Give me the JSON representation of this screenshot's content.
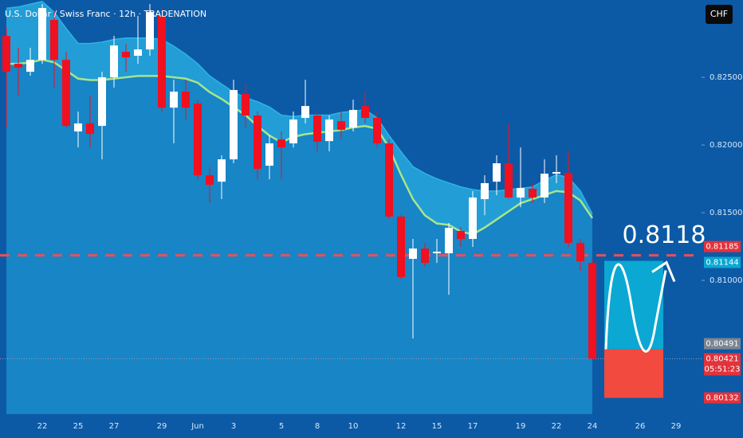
{
  "chart_data": {
    "type": "candlestick",
    "title": "U.S. Dollar / Swiss Franc · 12h · TRADENATION",
    "currency": "CHF",
    "up_color": "#ffffff",
    "down_color": "#f0101f",
    "categories": [
      null,
      null,
      null,
      "22",
      null,
      null,
      "25",
      null,
      null,
      "27",
      null,
      null,
      null,
      "29",
      null,
      null,
      "Jun",
      null,
      null,
      "3",
      null,
      null,
      null,
      "5",
      null,
      null,
      "8",
      null,
      null,
      "10",
      null,
      null,
      null,
      "12",
      null,
      null,
      "15",
      null,
      null,
      "17",
      null,
      null,
      null,
      "19",
      null,
      null,
      "22",
      null,
      null,
      "24",
      null,
      null,
      null,
      "26",
      null,
      null,
      "29"
    ],
    "open": [
      0.82806,
      0.826,
      0.82541,
      0.82629,
      0.82924,
      0.82629,
      0.821,
      0.82159,
      0.82141,
      0.825,
      0.82688,
      0.82659,
      0.82706,
      0.82953,
      0.82276,
      0.82394,
      0.82306,
      0.81776,
      0.81729,
      0.81894,
      0.82376,
      0.82218,
      0.81847,
      0.82041,
      0.82012,
      0.822,
      0.82218,
      0.82029,
      0.82176,
      0.82129,
      0.82288,
      0.822,
      0.82012,
      0.81471,
      0.81159,
      0.81235,
      0.812,
      0.812,
      0.81365,
      0.81306,
      0.816,
      0.81729,
      0.81865,
      0.81612,
      0.81676,
      0.81612,
      0.81788,
      0.81794,
      0.81276,
      0.81129,
      null,
      null,
      null,
      null,
      null,
      null,
      null
    ],
    "high": [
      0.82865,
      0.82718,
      0.82718,
      0.83041,
      0.82982,
      0.82688,
      0.82247,
      0.82365,
      0.82541,
      0.82806,
      0.82747,
      0.82953,
      0.83041,
      0.83012,
      0.82482,
      0.82482,
      0.82335,
      0.81835,
      0.81924,
      0.82482,
      0.82453,
      0.82247,
      0.82071,
      0.821,
      0.82247,
      0.82482,
      0.82247,
      0.82218,
      0.82247,
      0.82335,
      0.82394,
      0.82247,
      0.82041,
      0.81482,
      0.81306,
      0.81276,
      0.81306,
      0.81424,
      0.81394,
      0.81659,
      0.81776,
      0.81924,
      0.82159,
      0.81982,
      0.81718,
      0.81894,
      0.81924,
      0.81953,
      0.81306,
      0.81159,
      null,
      null,
      null,
      null,
      null,
      null,
      null
    ],
    "low": [
      0.82129,
      0.82365,
      0.82512,
      0.826,
      0.82424,
      0.82129,
      0.81982,
      0.81982,
      0.81894,
      0.82424,
      0.82541,
      0.826,
      0.82659,
      0.82247,
      0.82012,
      0.82188,
      0.81747,
      0.81571,
      0.816,
      0.81865,
      0.82129,
      0.81747,
      0.81747,
      0.81747,
      0.81982,
      0.82159,
      0.81953,
      0.81953,
      0.82041,
      0.821,
      0.82159,
      0.81982,
      0.81453,
      0.81012,
      0.80571,
      0.811,
      0.81129,
      0.80894,
      0.81247,
      0.81247,
      0.81482,
      0.81629,
      0.816,
      0.81541,
      0.81571,
      0.81571,
      0.81718,
      0.81247,
      0.81071,
      0.80412,
      null,
      null,
      null,
      null,
      null,
      null,
      null
    ],
    "close": [
      0.82541,
      0.82571,
      0.82629,
      0.83012,
      0.82629,
      0.82141,
      0.82159,
      0.82082,
      0.825,
      0.82735,
      0.82647,
      0.82706,
      0.82982,
      0.82276,
      0.82394,
      0.82276,
      0.81776,
      0.81706,
      0.81894,
      0.82406,
      0.82218,
      0.81824,
      0.82012,
      0.81982,
      0.82188,
      0.82288,
      0.82024,
      0.82188,
      0.82112,
      0.82259,
      0.822,
      0.82012,
      0.81471,
      0.81024,
      0.81235,
      0.81129,
      0.81212,
      0.81388,
      0.81306,
      0.81612,
      0.81718,
      0.81865,
      0.81612,
      0.81682,
      0.81612,
      0.81788,
      0.818,
      0.81276,
      0.81141,
      0.80421,
      null,
      null,
      null,
      null,
      null,
      null,
      null
    ],
    "ema": {
      "color": "#a8e58a",
      "values": [
        0.826,
        0.826,
        0.8261,
        0.8263,
        0.8261,
        0.8255,
        0.8249,
        0.8248,
        0.8248,
        0.8249,
        0.825,
        0.8251,
        0.8251,
        0.8251,
        0.825,
        0.8249,
        0.8246,
        0.8239,
        0.8234,
        0.8228,
        0.8222,
        0.8214,
        0.8207,
        0.8202,
        0.8206,
        0.8208,
        0.8209,
        0.821,
        0.8211,
        0.8213,
        0.8214,
        0.8212,
        0.8198,
        0.8178,
        0.816,
        0.8148,
        0.8142,
        0.8141,
        0.8136,
        0.8134,
        0.8139,
        0.8145,
        0.8151,
        0.8157,
        0.816,
        0.8163,
        0.8166,
        0.8165,
        0.8159,
        0.8146,
        null,
        null,
        null,
        null,
        null,
        null,
        null
      ]
    },
    "band": {
      "color": "#2fb4e3",
      "values": [
        0.8301,
        0.8302,
        0.8304,
        0.8306,
        0.8298,
        0.8286,
        0.8275,
        0.8275,
        0.8276,
        0.8278,
        0.8279,
        0.8279,
        0.8279,
        0.8278,
        0.8273,
        0.8267,
        0.826,
        0.8251,
        0.8245,
        0.8239,
        0.8235,
        0.8232,
        0.8228,
        0.8222,
        0.8221,
        0.8222,
        0.8222,
        0.8222,
        0.8224,
        0.8225,
        0.8226,
        0.822,
        0.8207,
        0.8195,
        0.8184,
        0.8179,
        0.8175,
        0.8172,
        0.8169,
        0.8167,
        0.8166,
        0.8166,
        0.8167,
        0.8168,
        0.8169,
        0.8174,
        0.8178,
        0.8176,
        0.8166,
        0.8149,
        null,
        null,
        null,
        null,
        null,
        null,
        null
      ]
    },
    "ylim": [
      0.80012,
      0.83071
    ],
    "yticks": [
      {
        "value": 0.825,
        "label": "0.82500"
      },
      {
        "value": 0.82,
        "label": "0.82000"
      },
      {
        "value": 0.815,
        "label": "0.81500"
      },
      {
        "value": 0.81,
        "label": "0.81000"
      }
    ],
    "annotation": "0.8118",
    "level": 0.81185,
    "last_price": 0.80421,
    "countdown": "05:51:23",
    "position": {
      "target": 0.81144,
      "entry": 0.80491,
      "stop": 0.80132
    }
  }
}
